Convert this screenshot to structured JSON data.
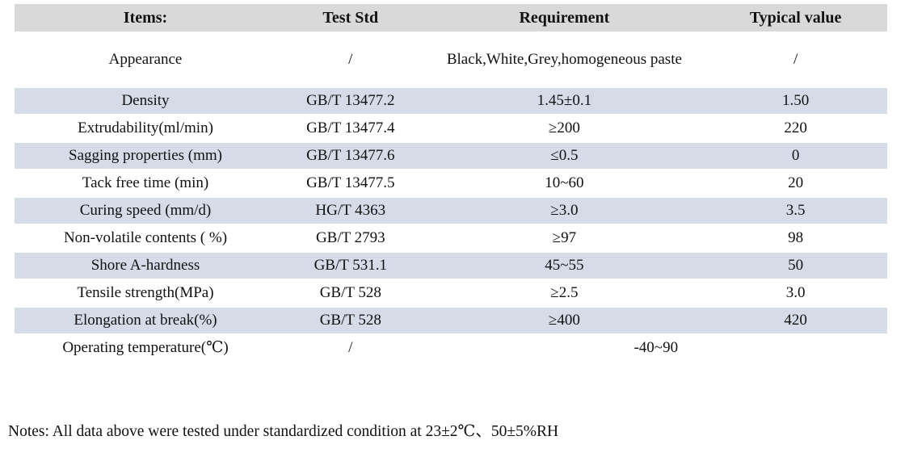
{
  "colors": {
    "header_bg": "#d9d9d9",
    "stripe_bg": "#d5dce8",
    "text": "#111111",
    "page_bg": "#ffffff"
  },
  "table": {
    "headers": [
      "Items:",
      "Test Std",
      "Requirement",
      "Typical value"
    ],
    "rows": [
      {
        "item": "Appearance",
        "test_std": "/",
        "requirement": "Black,White,Grey,homogeneous paste",
        "typical": "/",
        "wrap": true,
        "span": false
      },
      {
        "item": "Density",
        "test_std": "GB/T 13477.2",
        "requirement": "1.45±0.1",
        "typical": "1.50",
        "wrap": false,
        "span": false
      },
      {
        "item": "Extrudability(ml/min)",
        "test_std": "GB/T 13477.4",
        "requirement": "≥200",
        "typical": "220",
        "wrap": false,
        "span": false
      },
      {
        "item": "Sagging properties (mm)",
        "test_std": "GB/T 13477.6",
        "requirement": "≤0.5",
        "typical": "0",
        "wrap": false,
        "span": false
      },
      {
        "item": "Tack free time (min)",
        "test_std": "GB/T 13477.5",
        "requirement": "10~60",
        "typical": "20",
        "wrap": false,
        "span": false
      },
      {
        "item": "Curing speed (mm/d)",
        "test_std": "HG/T 4363",
        "requirement": "≥3.0",
        "typical": "3.5",
        "wrap": false,
        "span": false
      },
      {
        "item": "Non-volatile contents ( %)",
        "test_std": "GB/T 2793",
        "requirement": "≥97",
        "typical": "98",
        "wrap": false,
        "span": false
      },
      {
        "item": "Shore A-hardness",
        "test_std": "GB/T 531.1",
        "requirement": "45~55",
        "typical": "50",
        "wrap": false,
        "span": false
      },
      {
        "item": "Tensile strength(MPa)",
        "test_std": "GB/T 528",
        "requirement": "≥2.5",
        "typical": "3.0",
        "wrap": false,
        "span": false
      },
      {
        "item": "Elongation at break(%)",
        "test_std": "GB/T 528",
        "requirement": "≥400",
        "typical": "420",
        "wrap": false,
        "span": false
      },
      {
        "item": "Operating temperature(℃)",
        "test_std": "/",
        "requirement": "-40~90",
        "typical": "",
        "wrap": false,
        "span": true
      }
    ]
  },
  "notes": "Notes: All data above were tested under standardized condition at 23±2℃、50±5%RH"
}
